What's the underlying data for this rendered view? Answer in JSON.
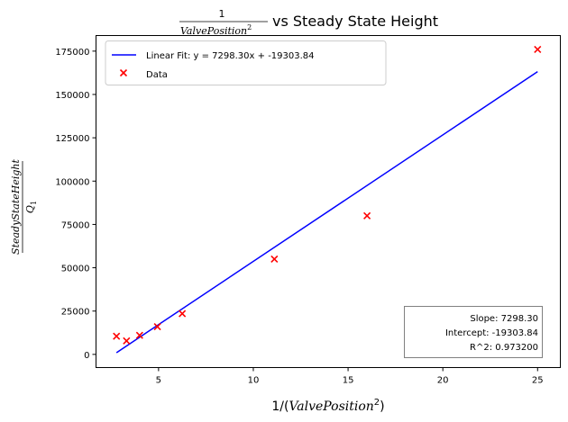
{
  "chart_data": {
    "type": "scatter",
    "title": {
      "numerator": "1",
      "denominator_base": "ValvePosition",
      "denominator_exp": "2",
      "suffix": " vs Steady State Height"
    },
    "xlabel": {
      "prefix": "1/(",
      "var": "ValvePosition",
      "exp": "2",
      "suffix": ")"
    },
    "ylabel": {
      "numerator": "SteadyStateHeight",
      "denominator_base": "Q",
      "denominator_sub": "1"
    },
    "xlim": [
      1.7,
      26.2
    ],
    "ylim": [
      -7600,
      184000
    ],
    "xticks": [
      5,
      10,
      15,
      20,
      25
    ],
    "yticks": [
      0,
      25000,
      50000,
      75000,
      100000,
      125000,
      150000,
      175000
    ],
    "grid": false,
    "legend_position": "upper-left",
    "series": [
      {
        "name": "Linear Fit: y = 7298.30x + -19303.84",
        "kind": "line",
        "color": "#0000ff",
        "x": [
          2.78,
          25
        ],
        "y": [
          989.04,
          163153.66
        ]
      },
      {
        "name": "Data",
        "kind": "scatter",
        "marker": "x",
        "color": "#ff0000",
        "x": [
          2.78,
          3.31,
          4.0,
          4.94,
          6.25,
          11.11,
          16.0,
          25.0
        ],
        "y": [
          10500,
          7800,
          11000,
          16000,
          23500,
          55000,
          80000,
          176000
        ]
      }
    ],
    "annotation": {
      "lines": [
        "Slope: 7298.30",
        "Intercept: -19303.84",
        "R^2: 0.973200"
      ],
      "position": "lower-right"
    }
  }
}
